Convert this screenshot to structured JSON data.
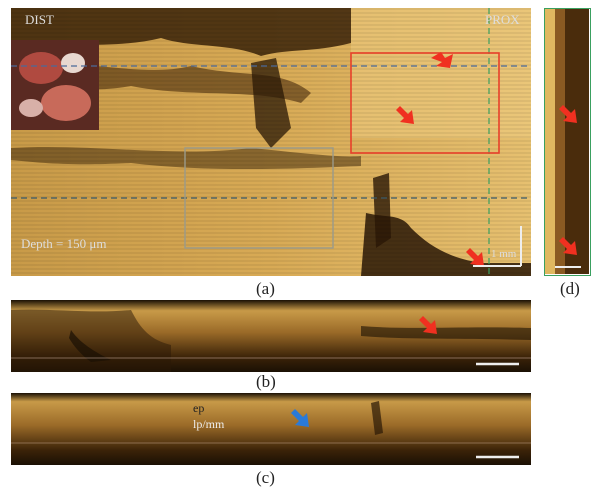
{
  "panel_a": {
    "label_dist": "DIST",
    "label_prox": "PROX",
    "depth_text": "Depth = 150 μm",
    "scale_text": "1 mm",
    "caption": "(a)"
  },
  "panel_b": {
    "caption": "(b)"
  },
  "panel_c": {
    "caption": "(c)",
    "label_ep": "ep",
    "label_lp": "lp/mm"
  },
  "panel_d": {
    "caption": "(d)"
  },
  "colors": {
    "tissue_light": "#e8c070",
    "tissue_dark": "#2a1a08",
    "roi_red": "#e8402a",
    "roi_gray": "#9a9a8a",
    "guide_green": "#3aa060",
    "guide_blue": "#4a6a9a",
    "arrow_red": "#f03020",
    "arrow_blue": "#2a7ad8"
  }
}
